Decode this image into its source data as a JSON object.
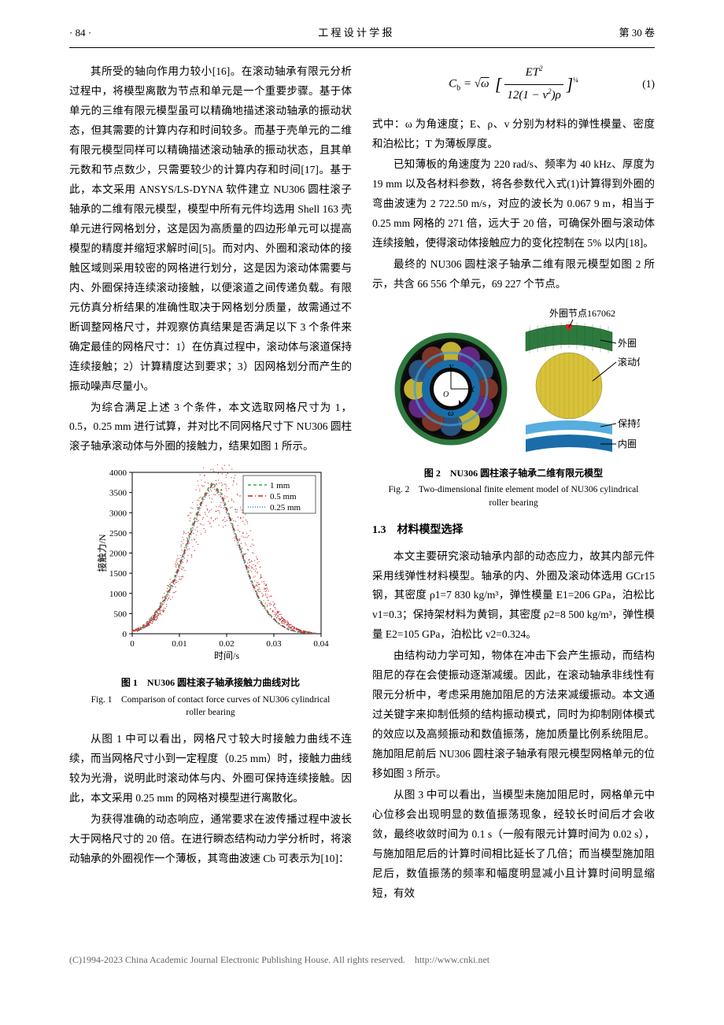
{
  "header": {
    "left": "· 84 ·",
    "center": "工 程 设 计 学 报",
    "right": "第 30 卷"
  },
  "leftCol": {
    "p1": "其所受的轴向作用力较小[16]。在滚动轴承有限元分析过程中，将模型离散为节点和单元是一个重要步骤。基于体单元的三维有限元模型虽可以精确地描述滚动轴承的振动状态，但其需要的计算内存和时间较多。而基于壳单元的二维有限元模型同样可以精确描述滚动轴承的振动状态，且其单元数和节点数少，只需要较少的计算内存和时间[17]。基于此，本文采用 ANSYS/LS-DYNA 软件建立 NU306 圆柱滚子轴承的二维有限元模型，模型中所有元件均选用 Shell 163 壳单元进行网格划分，这是因为高质量的四边形单元可以提高模型的精度并缩短求解时间[5]。而对内、外圈和滚动体的接触区域则采用较密的网格进行划分，这是因为滚动体需要与内、外圈保持连续滚动接触，以便滚道之间传递负载。有限元仿真分析结果的准确性取决于网格划分质量，故需通过不断调整网格尺寸，并观察仿真结果是否满足以下 3 个条件来确定最佳的网格尺寸：1）在仿真过程中，滚动体与滚道保持连续接触；2）计算精度达到要求；3）因网格划分而产生的振动噪声尽量小。",
    "p2": "为综合满足上述 3 个条件，本文选取网格尺寸为 1，0.5，0.25 mm 进行试算，并对比不同网格尺寸下 NU306 圆柱滚子轴承滚动体与外圈的接触力，结果如图 1 所示。",
    "p3": "从图 1 中可以看出，网格尺寸较大时接触力曲线不连续，而当网格尺寸小到一定程度（0.25 mm）时，接触力曲线较为光滑，说明此时滚动体与内、外圈可保持连续接触。因此，本文采用 0.25 mm 的网格对模型进行离散化。",
    "p4": "为获得准确的动态响应，通常要求在波传播过程中波长大于网格尺寸的 20 倍。在进行瞬态结构动力学分析时，将滚动轴承的外圈视作一个薄板，其弯曲波速 Cb 可表示为[10]："
  },
  "fig1": {
    "caption_zh": "图 1　NU306 圆柱滚子轴承接触力曲线对比",
    "caption_en": "Fig. 1　Comparison of contact force curves of NU306 cylindrical roller bearing",
    "chart": {
      "type": "line-scatter",
      "xlabel": "时间/s",
      "ylabel": "接触力/N",
      "xlim": [
        0,
        0.04
      ],
      "xticks": [
        0,
        0.01,
        0.02,
        0.03,
        0.04
      ],
      "ylim": [
        0,
        4000
      ],
      "yticks": [
        0,
        500,
        1000,
        1500,
        2000,
        2500,
        3000,
        3500,
        4000
      ],
      "background": "#ffffff",
      "series": [
        {
          "name": "1 mm",
          "color": "#29b24a",
          "marker": "dash",
          "x": [
            0.001,
            0.003,
            0.005,
            0.007,
            0.009,
            0.011,
            0.013,
            0.015,
            0.017,
            0.019,
            0.021,
            0.023,
            0.025,
            0.027,
            0.029,
            0.031,
            0.033,
            0.035,
            0.037,
            0.039
          ],
          "y": [
            80,
            220,
            520,
            900,
            1400,
            2050,
            2800,
            3400,
            3750,
            3450,
            2800,
            2100,
            1400,
            850,
            500,
            260,
            120,
            50,
            20,
            10
          ]
        },
        {
          "name": "0.5 mm",
          "color": "#e41a1c",
          "marker": "dashdot",
          "x": [
            0.001,
            0.003,
            0.005,
            0.007,
            0.009,
            0.011,
            0.013,
            0.015,
            0.017,
            0.019,
            0.021,
            0.023,
            0.025,
            0.027,
            0.029,
            0.031,
            0.033,
            0.035,
            0.037,
            0.039
          ],
          "y": [
            60,
            200,
            480,
            860,
            1350,
            2000,
            2700,
            3350,
            3700,
            3400,
            2750,
            2060,
            1360,
            820,
            480,
            250,
            110,
            45,
            18,
            8
          ]
        },
        {
          "name": "0.25 mm",
          "color": "#377eb8",
          "marker": "dot",
          "x": [
            0.001,
            0.003,
            0.005,
            0.007,
            0.009,
            0.011,
            0.013,
            0.015,
            0.017,
            0.019,
            0.021,
            0.023,
            0.025,
            0.027,
            0.029,
            0.031,
            0.033,
            0.035,
            0.037,
            0.039
          ],
          "y": [
            50,
            180,
            450,
            820,
            1300,
            1950,
            2650,
            3300,
            3650,
            3350,
            2700,
            2020,
            1320,
            790,
            460,
            240,
            100,
            40,
            15,
            6
          ]
        }
      ]
    }
  },
  "rightCol": {
    "eq1": {
      "text": "C_b = √ω [ ET² / (12(1 − v²)ρ) ]^{1/4}",
      "num": "(1)"
    },
    "p5": "式中：ω 为角速度；E、ρ、v 分别为材料的弹性模量、密度和泊松比；T 为薄板厚度。",
    "p6": "已知薄板的角速度为 220 rad/s、频率为 40 kHz、厚度为 19 mm 以及各材料参数，将各参数代入式(1)计算得到外圈的弯曲波速为 2 722.50 m/s，对应的波长为 0.067 9 m，相当于 0.25 mm 网格的 271 倍，远大于 20 倍，可确保外圈与滚动体连续接触，使得滚动体接触应力的变化控制在 5% 以内[18]。",
    "p7": "最终的 NU306 圆柱滚子轴承二维有限元模型如图 2 所示，共含 66 556 个单元，69 227 个节点。",
    "sec13": "1.3　材料模型选择",
    "p8": "本文主要研究滚动轴承内部的动态应力，故其内部元件采用线弹性材料模型。轴承的内、外圈及滚动体选用 GCr15 钢，其密度 ρ1=7 830 kg/m³，弹性模量 E1=206 GPa，泊松比 v1=0.3；保持架材料为黄铜，其密度 ρ2=8 500 kg/m³，弹性模量 E2=105 GPa，泊松比 v2=0.324。",
    "p9": "由结构动力学可知，物体在冲击下会产生振动，而结构阻尼的存在会使振动逐渐减缓。因此，在滚动轴承非线性有限元分析中，考虑采用施加阻尼的方法来减缓振动。本文通过关键字来抑制低频的结构振动模式，同时为抑制刚体模式的效应以及高频振动和数值振荡，施加质量比例系统阻尼。施加阻尼前后 NU306 圆柱滚子轴承有限元模型网格单元的位移如图 3 所示。",
    "p10": "从图 3 中可以看出，当模型未施加阻尼时，网格单元中心位移会出现明显的数值振荡现象，经较长时间后才会收敛，最终收敛时间为 0.1 s（一般有限元计算时间为 0.02 s），与施加阻尼后的计算时间相比延长了几倍；而当模型施加阻尼后，数值振荡的频率和幅度明显减小且计算时间明显缩短，有效"
  },
  "fig2": {
    "caption_zh": "图 2　NU306 圆柱滚子轴承二维有限元模型",
    "caption_en": "Fig. 2　Two-dimensional finite element model of NU306 cylindrical roller bearing",
    "labels": {
      "outer_node": "外圈节点167062",
      "outer_ring": "外圈",
      "roller": "滚动体",
      "cage": "保持架",
      "inner_ring": "内圈"
    },
    "colors": {
      "outer_ring": "#2e7a3e",
      "roller_main": "#d8c23a",
      "roller_alt1": "#6b2b8f",
      "roller_alt2": "#2d5a8c",
      "roller_alt3": "#8a3a2c",
      "cage": "#3a9fd8",
      "inner_ring": "#1a6da8",
      "bg": "#ffffff"
    }
  },
  "footer": "(C)1994-2023 China Academic Journal Electronic Publishing House. All rights reserved.　http://www.cnki.net"
}
